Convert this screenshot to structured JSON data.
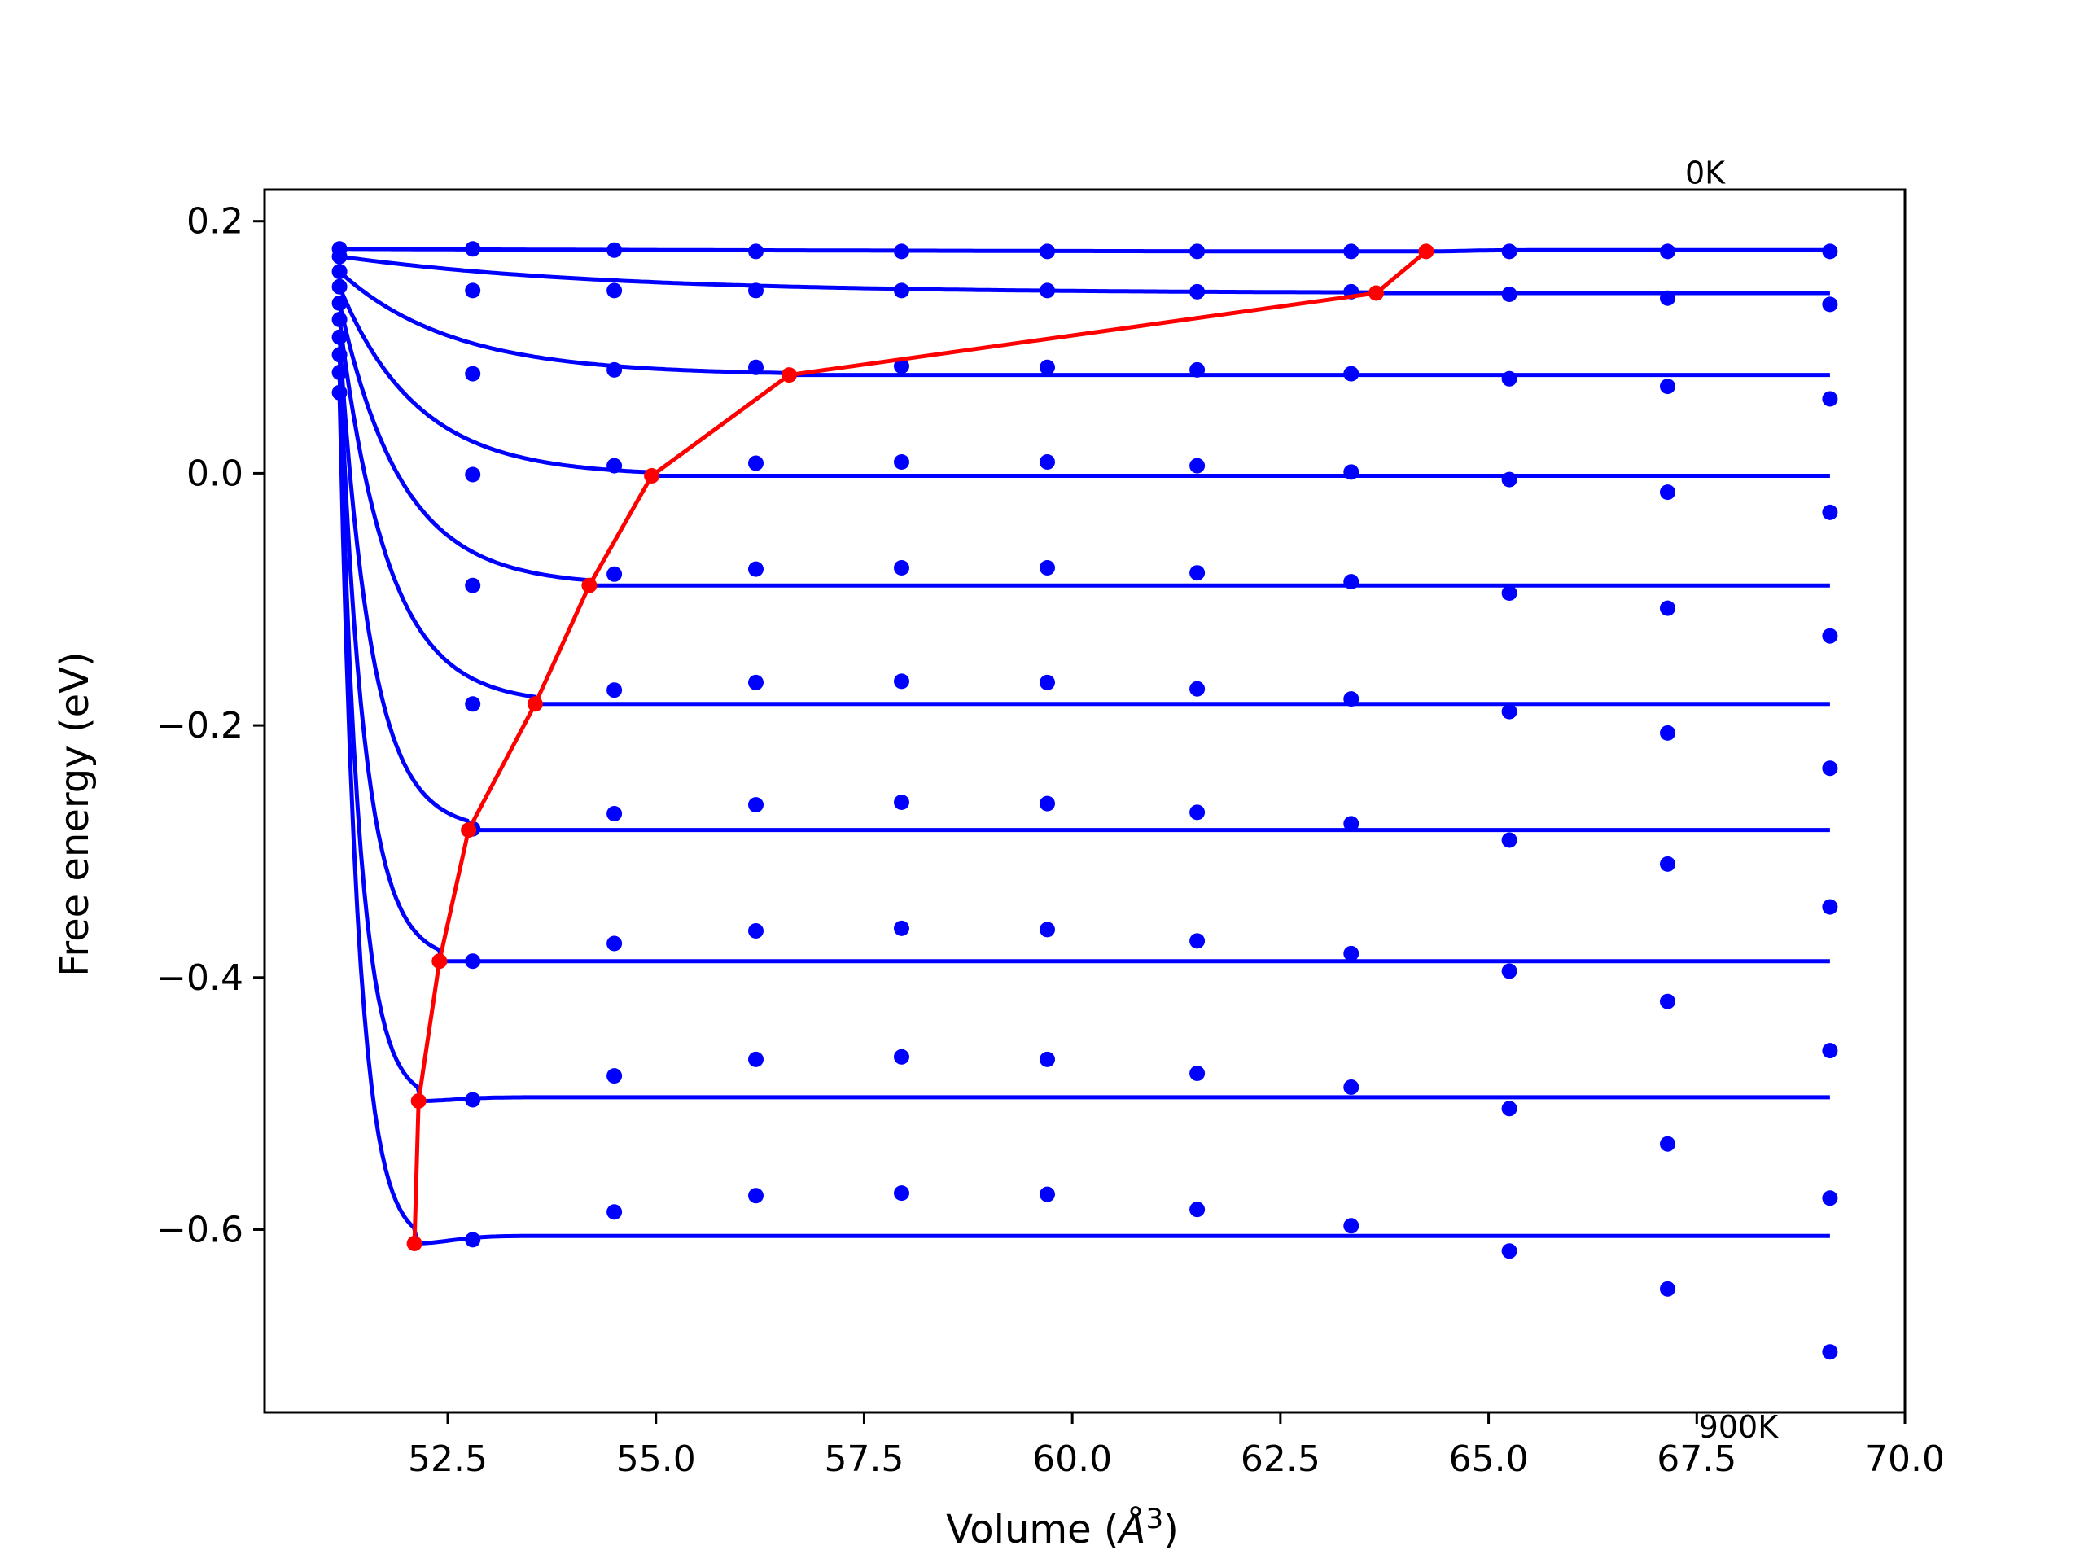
{
  "chart_data": {
    "type": "line",
    "title": "",
    "xlabel_prefix": "Volume (",
    "xlabel_symbol": "Å",
    "xlabel_exp": "3",
    "xlabel_suffix": ")",
    "ylabel": "Free energy (eV)",
    "xlim": [
      50.3,
      70.0
    ],
    "ylim": [
      -0.745,
      0.225
    ],
    "xticks": [
      52.5,
      55.0,
      57.5,
      60.0,
      62.5,
      65.0,
      67.5,
      70.0
    ],
    "xtick_labels": [
      "52.5",
      "55.0",
      "57.5",
      "60.0",
      "62.5",
      "65.0",
      "67.5",
      "70.0"
    ],
    "yticks": [
      0.2,
      0.0,
      -0.2,
      -0.4,
      -0.6
    ],
    "ytick_labels": [
      "0.2",
      "0.0",
      "−0.2",
      "−0.4",
      "−0.6"
    ],
    "grid": false,
    "annotations": [
      {
        "text": "0K",
        "x": 67.6,
        "y": 0.23
      },
      {
        "text": "900K",
        "x": 68.0,
        "y": -0.765
      }
    ],
    "colors": {
      "fit": "#0000ff",
      "points": "#0000ff",
      "minimum_path": "#ff0000"
    },
    "x_volumes": [
      51.2,
      52.8,
      54.5,
      56.2,
      57.95,
      59.7,
      61.5,
      63.35,
      65.25,
      67.15,
      69.1
    ],
    "series": [
      {
        "points": [
          0.178,
          0.178,
          0.177,
          0.176,
          0.176,
          0.176,
          0.176,
          0.176,
          0.176,
          0.176,
          0.176
        ],
        "fit_plateau": 0.177,
        "min": {
          "x": 64.25,
          "y": 0.176
        }
      },
      {
        "points": [
          0.172,
          0.145,
          0.145,
          0.145,
          0.145,
          0.145,
          0.144,
          0.144,
          0.142,
          0.139,
          0.134
        ],
        "fit_plateau": 0.143,
        "min": {
          "x": 63.65,
          "y": 0.143
        }
      },
      {
        "points": [
          0.16,
          0.079,
          0.082,
          0.084,
          0.085,
          0.084,
          0.082,
          0.079,
          0.075,
          0.069,
          0.059
        ],
        "fit_plateau": 0.078,
        "min": {
          "x": 56.6,
          "y": 0.078
        }
      },
      {
        "points": [
          0.148,
          -0.001,
          0.006,
          0.008,
          0.009,
          0.009,
          0.006,
          0.001,
          -0.005,
          -0.015,
          -0.031
        ],
        "fit_plateau": -0.002,
        "min": {
          "x": 54.95,
          "y": -0.002
        }
      },
      {
        "points": [
          0.135,
          -0.089,
          -0.08,
          -0.076,
          -0.075,
          -0.075,
          -0.079,
          -0.086,
          -0.095,
          -0.107,
          -0.129
        ],
        "fit_plateau": -0.089,
        "min": {
          "x": 54.2,
          "y": -0.089
        }
      },
      {
        "points": [
          0.122,
          -0.183,
          -0.172,
          -0.166,
          -0.165,
          -0.166,
          -0.171,
          -0.179,
          -0.189,
          -0.206,
          -0.234
        ],
        "fit_plateau": -0.183,
        "min": {
          "x": 53.55,
          "y": -0.183
        }
      },
      {
        "points": [
          0.108,
          -0.282,
          -0.27,
          -0.263,
          -0.261,
          -0.262,
          -0.269,
          -0.278,
          -0.291,
          -0.31,
          -0.344
        ],
        "fit_plateau": -0.283,
        "min": {
          "x": 52.75,
          "y": -0.283
        }
      },
      {
        "points": [
          0.094,
          -0.387,
          -0.373,
          -0.363,
          -0.361,
          -0.362,
          -0.371,
          -0.381,
          -0.395,
          -0.419,
          -0.458
        ],
        "fit_plateau": -0.387,
        "min": {
          "x": 52.4,
          "y": -0.387
        }
      },
      {
        "points": [
          0.08,
          -0.497,
          -0.478,
          -0.465,
          -0.463,
          -0.465,
          -0.476,
          -0.487,
          -0.504,
          -0.532,
          -0.575
        ],
        "fit_plateau": -0.495,
        "min": {
          "x": 52.15,
          "y": -0.498
        }
      },
      {
        "points": [
          0.064,
          -0.608,
          -0.586,
          -0.573,
          -0.571,
          -0.572,
          -0.584,
          -0.597,
          -0.617,
          -0.647,
          -0.697
        ],
        "fit_plateau": -0.605,
        "min": {
          "x": 52.1,
          "y": -0.611
        }
      }
    ]
  }
}
